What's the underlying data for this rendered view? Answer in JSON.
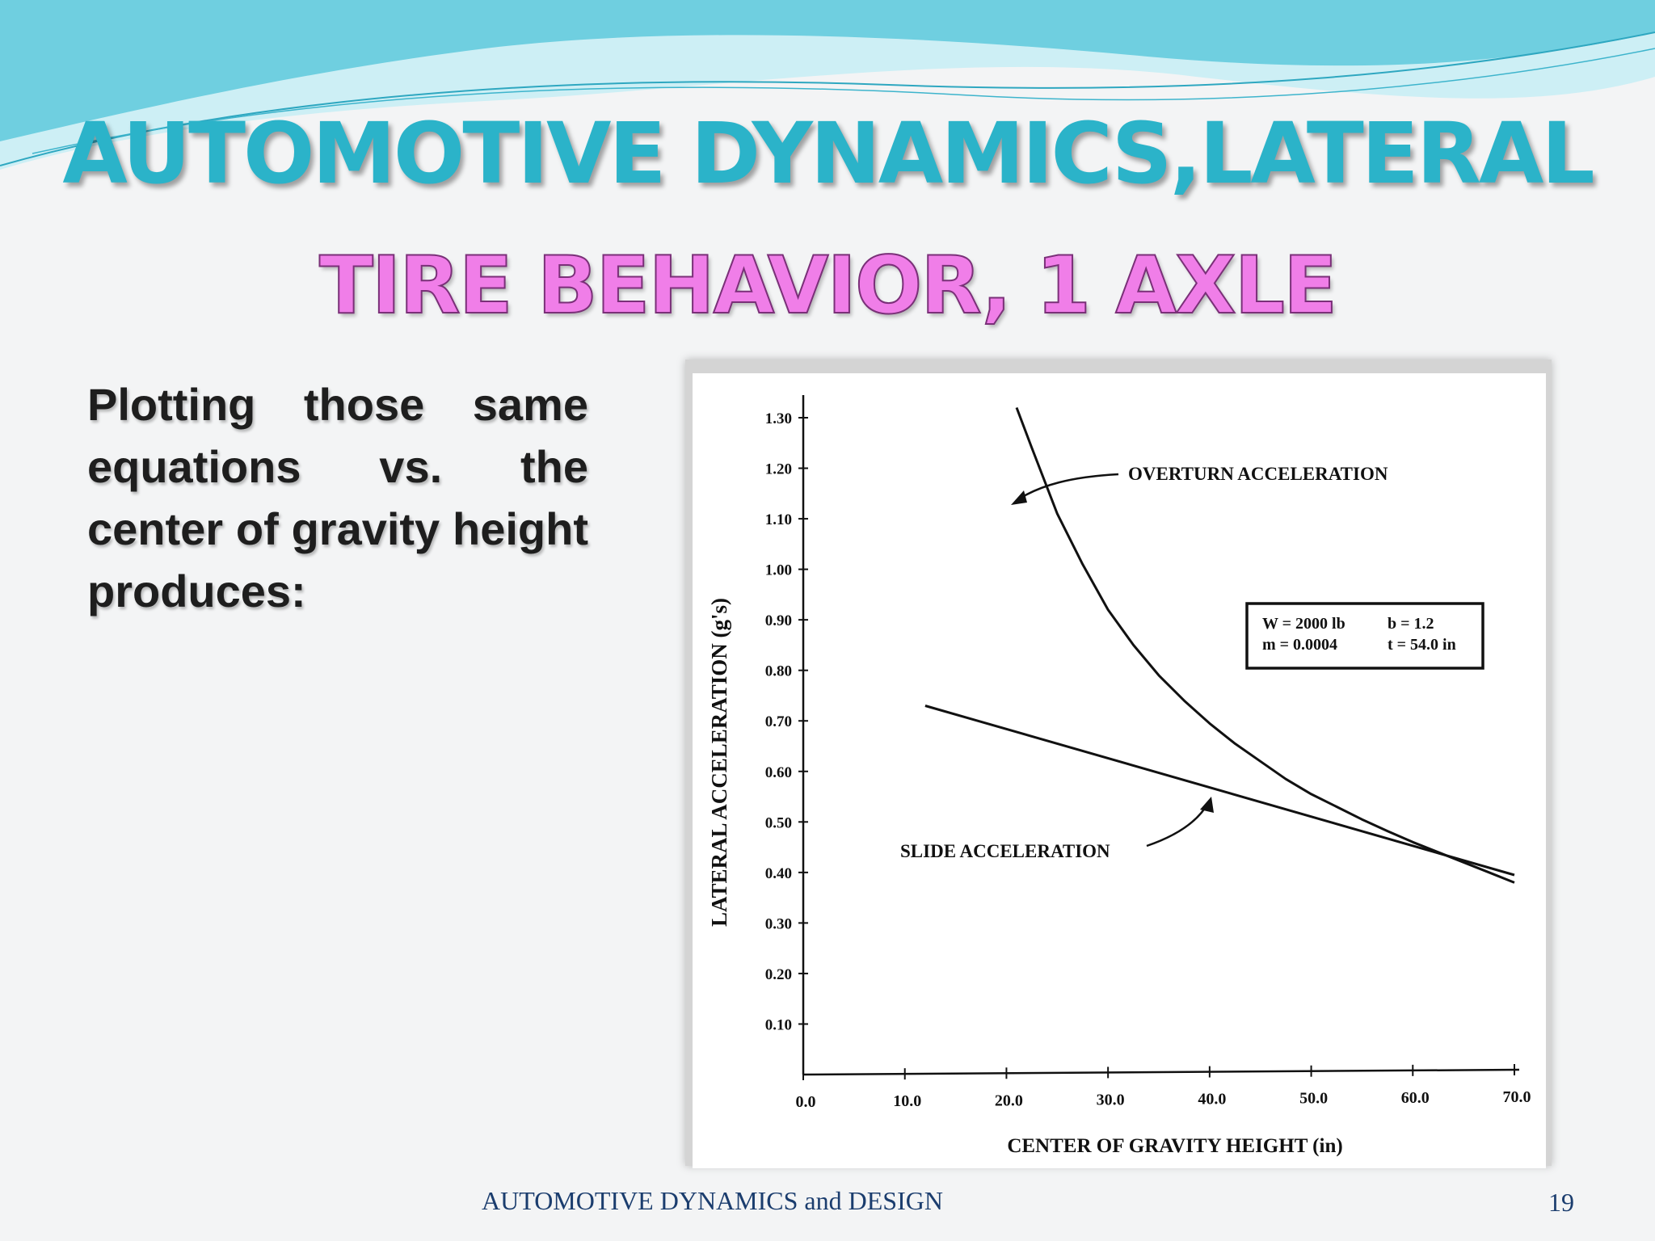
{
  "slide": {
    "title": "AUTOMOTIVE DYNAMICS,LATERAL",
    "subtitle": "TIRE BEHAVIOR, 1 AXLE",
    "body": "Plotting those same equations vs. the center of gravity height produces:",
    "footer": "AUTOMOTIVE DYNAMICS and DESIGN",
    "page_number": "19"
  },
  "colors": {
    "title": "#2bb3c9",
    "subtitle": "#f07ee8",
    "wave_light": "#cdeff5",
    "wave_mid": "#6fcfe0",
    "footer": "#1b3d6e"
  },
  "chart_data": {
    "type": "line",
    "xlabel": "CENTER OF GRAVITY HEIGHT (in)",
    "ylabel": "LATERAL ACCELERATION (g's)",
    "xlim": [
      0,
      70
    ],
    "ylim": [
      0,
      1.3
    ],
    "x_ticks": [
      "0.0",
      "10.0",
      "20.0",
      "30.0",
      "40.0",
      "50.0",
      "60.0",
      "70.0"
    ],
    "y_ticks": [
      "0.10",
      "0.20",
      "0.30",
      "0.40",
      "0.50",
      "0.60",
      "0.70",
      "0.80",
      "0.90",
      "1.00",
      "1.10",
      "1.20",
      "1.30"
    ],
    "series": [
      {
        "name": "OVERTURN ACCELERATION",
        "x": [
          21,
          22.5,
          25,
          27.5,
          30,
          32.5,
          35,
          37.5,
          40,
          42.5,
          45,
          47.5,
          50,
          52.5,
          55,
          57.5,
          60,
          62.5,
          65,
          67.5,
          70
        ],
        "values": [
          1.32,
          1.24,
          1.11,
          1.01,
          0.92,
          0.85,
          0.79,
          0.74,
          0.695,
          0.655,
          0.62,
          0.585,
          0.555,
          0.53,
          0.505,
          0.482,
          0.46,
          0.44,
          0.42,
          0.4,
          0.38
        ]
      },
      {
        "name": "SLIDE ACCELERATION",
        "x": [
          12,
          70
        ],
        "values": [
          0.73,
          0.395
        ]
      }
    ],
    "annotations": {
      "overturn_label": "OVERTURN ACCELERATION",
      "slide_label": "SLIDE ACCELERATION",
      "legend_box": [
        "W = 2000 lb",
        "b = 1.2",
        "m = 0.0004",
        "t = 54.0 in"
      ]
    },
    "grid": false
  }
}
